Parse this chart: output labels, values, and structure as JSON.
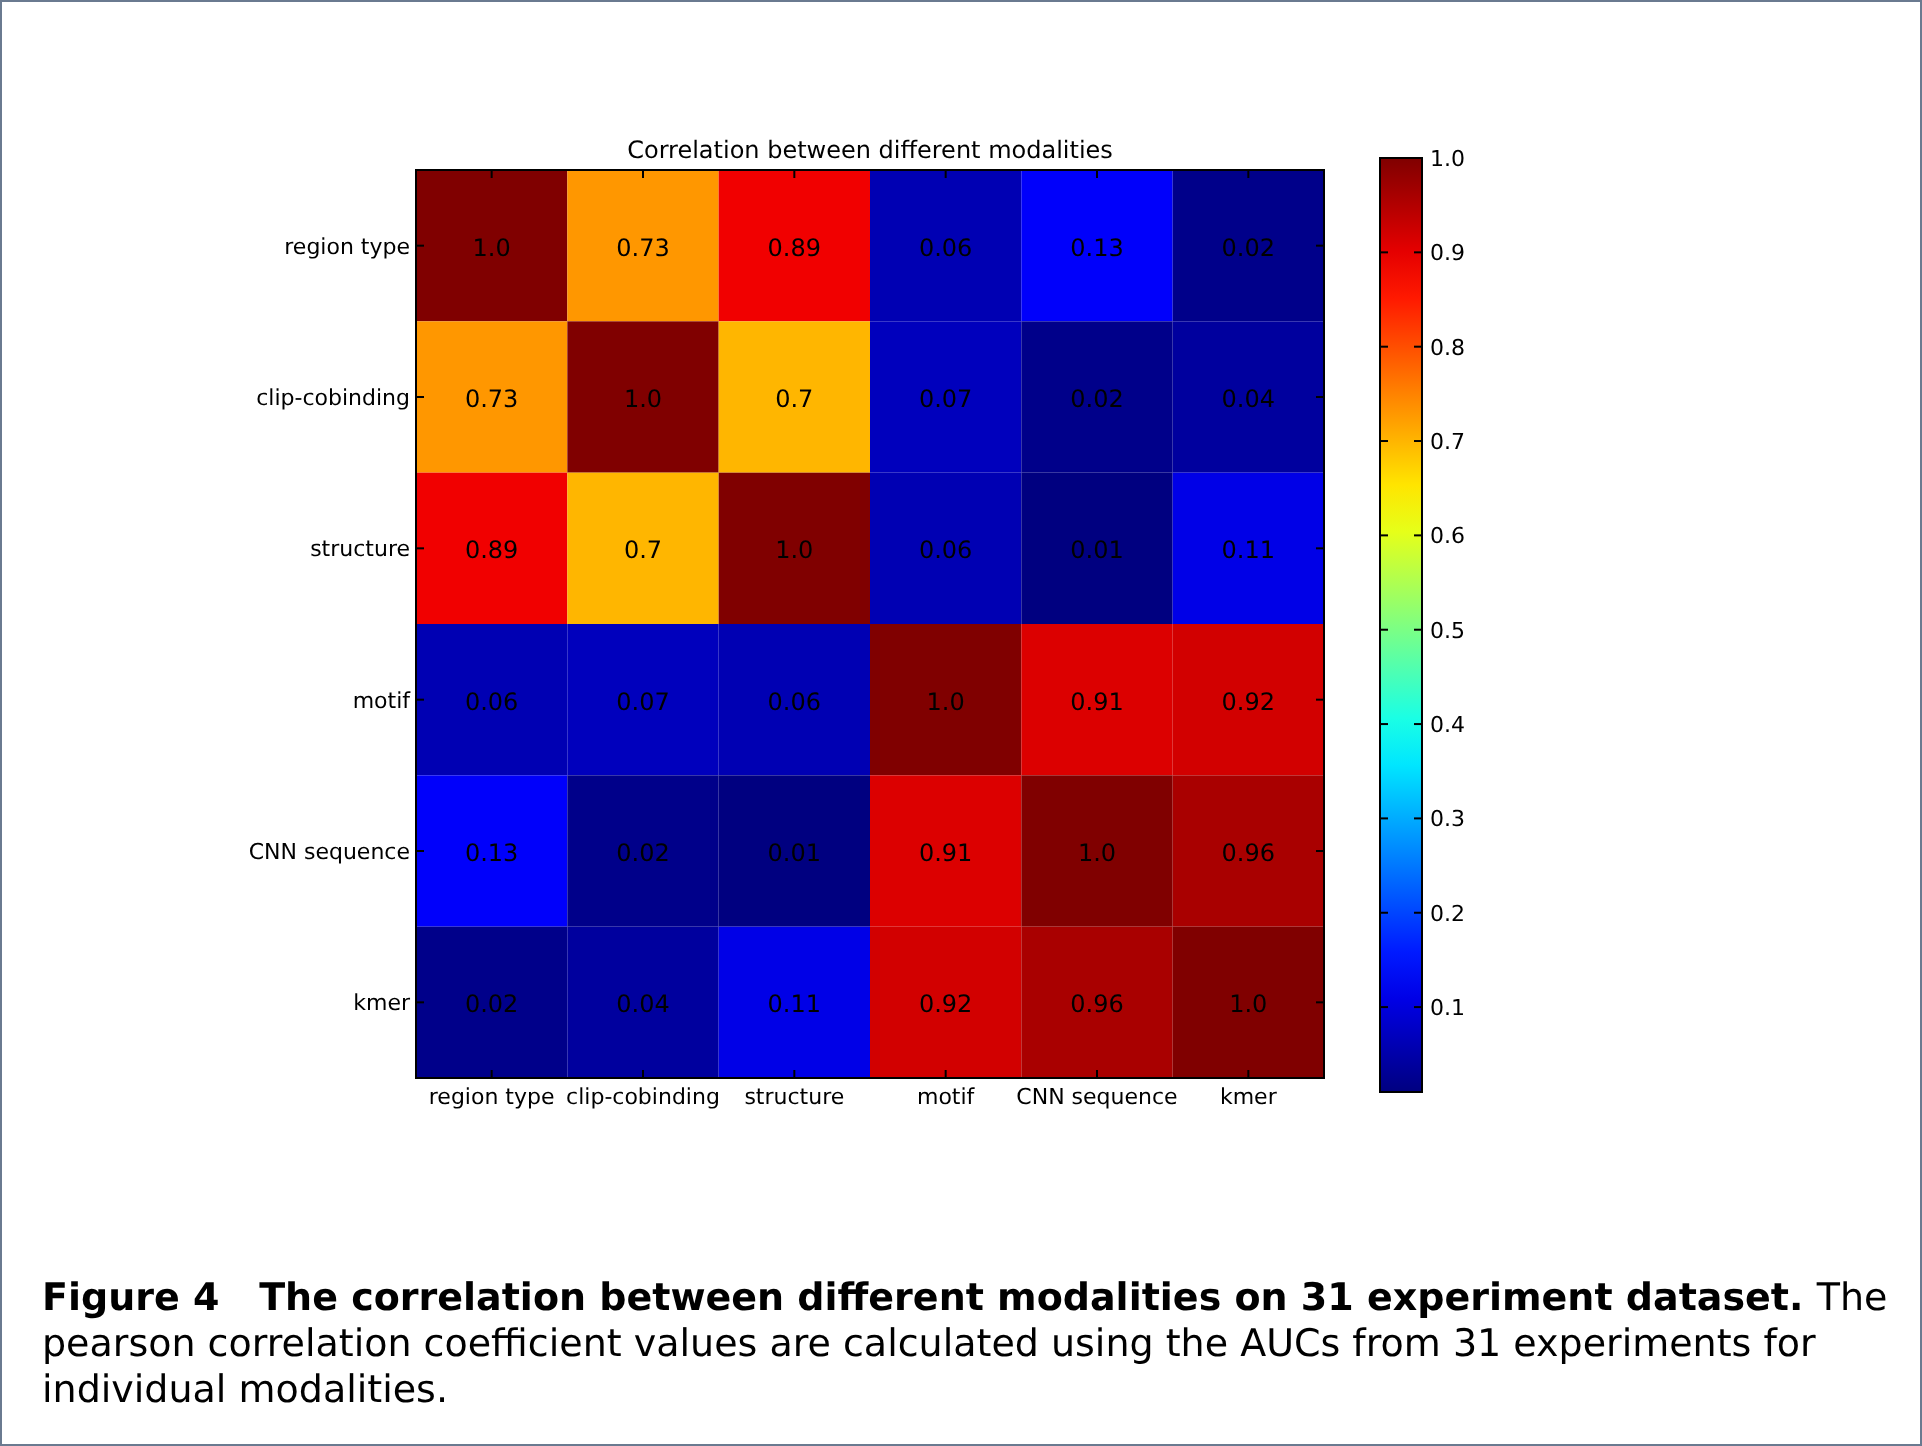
{
  "chart_data": {
    "type": "heatmap",
    "title": "Correlation between different modalities",
    "categories": [
      "region type",
      "clip-cobinding",
      "structure",
      "motif",
      "CNN sequence",
      "kmer"
    ],
    "y_categories": [
      "region type",
      "clip-cobinding",
      "structure",
      "motif",
      "CNN sequence",
      "kmer"
    ],
    "cells": [
      [
        1.0,
        0.73,
        0.89,
        0.06,
        0.13,
        0.02
      ],
      [
        0.73,
        1.0,
        0.7,
        0.07,
        0.02,
        0.04
      ],
      [
        0.89,
        0.7,
        1.0,
        0.06,
        0.01,
        0.11
      ],
      [
        0.06,
        0.07,
        0.06,
        1.0,
        0.91,
        0.92
      ],
      [
        0.13,
        0.02,
        0.01,
        0.91,
        1.0,
        0.96
      ],
      [
        0.02,
        0.04,
        0.11,
        0.92,
        0.96,
        1.0
      ]
    ],
    "cell_labels": [
      [
        "1.0",
        "0.73",
        "0.89",
        "0.06",
        "0.13",
        "0.02"
      ],
      [
        "0.73",
        "1.0",
        "0.7",
        "0.07",
        "0.02",
        "0.04"
      ],
      [
        "0.89",
        "0.7",
        "1.0",
        "0.06",
        "0.01",
        "0.11"
      ],
      [
        "0.06",
        "0.07",
        "0.06",
        "1.0",
        "0.91",
        "0.92"
      ],
      [
        "0.13",
        "0.02",
        "0.01",
        "0.91",
        "1.0",
        "0.96"
      ],
      [
        "0.02",
        "0.04",
        "0.11",
        "0.92",
        "0.96",
        "1.0"
      ]
    ],
    "clim": [
      0.01,
      1.0
    ],
    "cticks": [
      0.1,
      0.2,
      0.3,
      0.4,
      0.5,
      0.6,
      0.7,
      0.8,
      0.9,
      {
        "value": 1,
        "label": "1.0"
      }
    ],
    "annotations": [
      "Figure 4",
      "The correlation between different modalities on 31 experiment dataset.",
      "The pearson correlation coefficient values are calculated using the AUCs from 31 experiments for individual modalities."
    ]
  }
}
